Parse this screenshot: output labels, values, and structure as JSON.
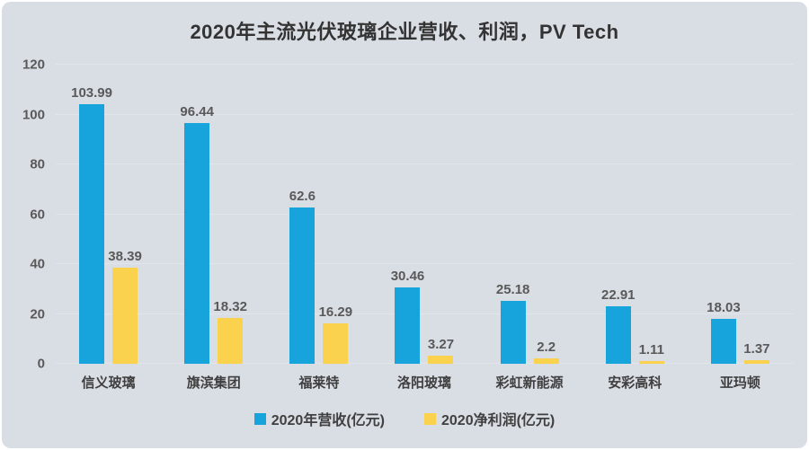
{
  "title": "2020年主流光伏玻璃企业营收、利润，PV Tech",
  "colors": {
    "revenue": "#17A4DC",
    "profit": "#FBD24E",
    "background": "#D9DDE4",
    "label_text": "#595959",
    "title_text": "#333333"
  },
  "y_axis": {
    "ticks": [
      0,
      20,
      40,
      60,
      80,
      100,
      120
    ]
  },
  "legend": [
    {
      "label": "2020年营收(亿元)",
      "series_key": "revenue"
    },
    {
      "label": "2020净利润(亿元)",
      "series_key": "profit"
    }
  ],
  "chart_data": {
    "type": "bar",
    "title": "2020年主流光伏玻璃企业营收、利润，PV Tech",
    "categories": [
      "信义玻璃",
      "旗滨集团",
      "福莱特",
      "洛阳玻璃",
      "彩虹新能源",
      "安彩高科",
      "亚玛顿"
    ],
    "series": [
      {
        "name": "2020年营收(亿元)",
        "key": "revenue",
        "values": [
          103.99,
          96.44,
          62.6,
          30.46,
          25.18,
          22.91,
          18.03
        ]
      },
      {
        "name": "2020净利润(亿元)",
        "key": "profit",
        "values": [
          38.39,
          18.32,
          16.29,
          3.27,
          2.2,
          1.11,
          1.37
        ]
      }
    ],
    "xlabel": "",
    "ylabel": "",
    "ylim": [
      0,
      120
    ],
    "grid": true,
    "legend_position": "bottom",
    "data_labels": true
  }
}
